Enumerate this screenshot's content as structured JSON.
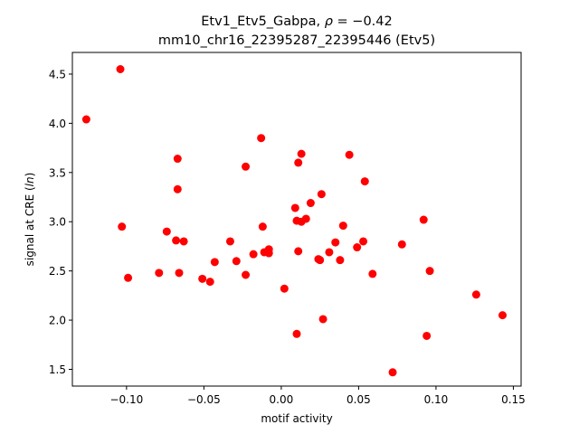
{
  "chart_data": {
    "type": "scatter",
    "title_parts": {
      "prefix": "Etv1_Etv5_Gabpa, ",
      "rho_symbol": "ρ",
      "rho_text": " = −0.42"
    },
    "subtitle": "mm10_chr16_22395287_22395446 (Etv5)",
    "xlabel": "motif activity",
    "ylabel_parts": {
      "prefix": "signal at CRE (",
      "italic": "ln",
      "suffix": ")"
    },
    "xlim": [
      -0.135,
      0.155
    ],
    "ylim": [
      1.33,
      4.72
    ],
    "xticks": [
      -0.1,
      -0.05,
      0.0,
      0.05,
      0.1,
      0.15
    ],
    "xtick_labels": [
      "−0.10",
      "−0.05",
      "0.00",
      "0.05",
      "0.10",
      "0.15"
    ],
    "yticks": [
      1.5,
      2.0,
      2.5,
      3.0,
      3.5,
      4.0,
      4.5
    ],
    "ytick_labels": [
      "1.5",
      "2.0",
      "2.5",
      "3.0",
      "3.5",
      "4.0",
      "4.5"
    ],
    "grid": false,
    "marker_color": "#ff0000",
    "points": [
      [
        -0.126,
        4.04
      ],
      [
        -0.104,
        4.55
      ],
      [
        -0.103,
        2.95
      ],
      [
        -0.099,
        2.43
      ],
      [
        -0.079,
        2.48
      ],
      [
        -0.074,
        2.9
      ],
      [
        -0.068,
        2.81
      ],
      [
        -0.067,
        3.64
      ],
      [
        -0.067,
        3.33
      ],
      [
        -0.066,
        2.48
      ],
      [
        -0.063,
        2.8
      ],
      [
        -0.051,
        2.42
      ],
      [
        -0.046,
        2.39
      ],
      [
        -0.043,
        2.59
      ],
      [
        -0.033,
        2.8
      ],
      [
        -0.029,
        2.6
      ],
      [
        -0.023,
        3.56
      ],
      [
        -0.023,
        2.46
      ],
      [
        -0.018,
        2.67
      ],
      [
        -0.013,
        3.85
      ],
      [
        -0.012,
        2.95
      ],
      [
        -0.011,
        2.69
      ],
      [
        -0.008,
        2.72
      ],
      [
        -0.008,
        2.68
      ],
      [
        0.002,
        2.32
      ],
      [
        0.009,
        3.14
      ],
      [
        0.01,
        3.01
      ],
      [
        0.01,
        1.86
      ],
      [
        0.011,
        3.6
      ],
      [
        0.011,
        2.7
      ],
      [
        0.013,
        3.69
      ],
      [
        0.013,
        3.0
      ],
      [
        0.016,
        3.03
      ],
      [
        0.019,
        3.19
      ],
      [
        0.024,
        2.62
      ],
      [
        0.025,
        2.61
      ],
      [
        0.026,
        3.28
      ],
      [
        0.027,
        2.01
      ],
      [
        0.031,
        2.69
      ],
      [
        0.035,
        2.79
      ],
      [
        0.038,
        2.61
      ],
      [
        0.04,
        2.96
      ],
      [
        0.044,
        3.68
      ],
      [
        0.049,
        2.74
      ],
      [
        0.053,
        2.8
      ],
      [
        0.054,
        3.41
      ],
      [
        0.059,
        2.47
      ],
      [
        0.072,
        1.47
      ],
      [
        0.078,
        2.77
      ],
      [
        0.092,
        3.02
      ],
      [
        0.094,
        1.84
      ],
      [
        0.096,
        2.5
      ],
      [
        0.126,
        2.26
      ],
      [
        0.143,
        2.05
      ]
    ]
  }
}
